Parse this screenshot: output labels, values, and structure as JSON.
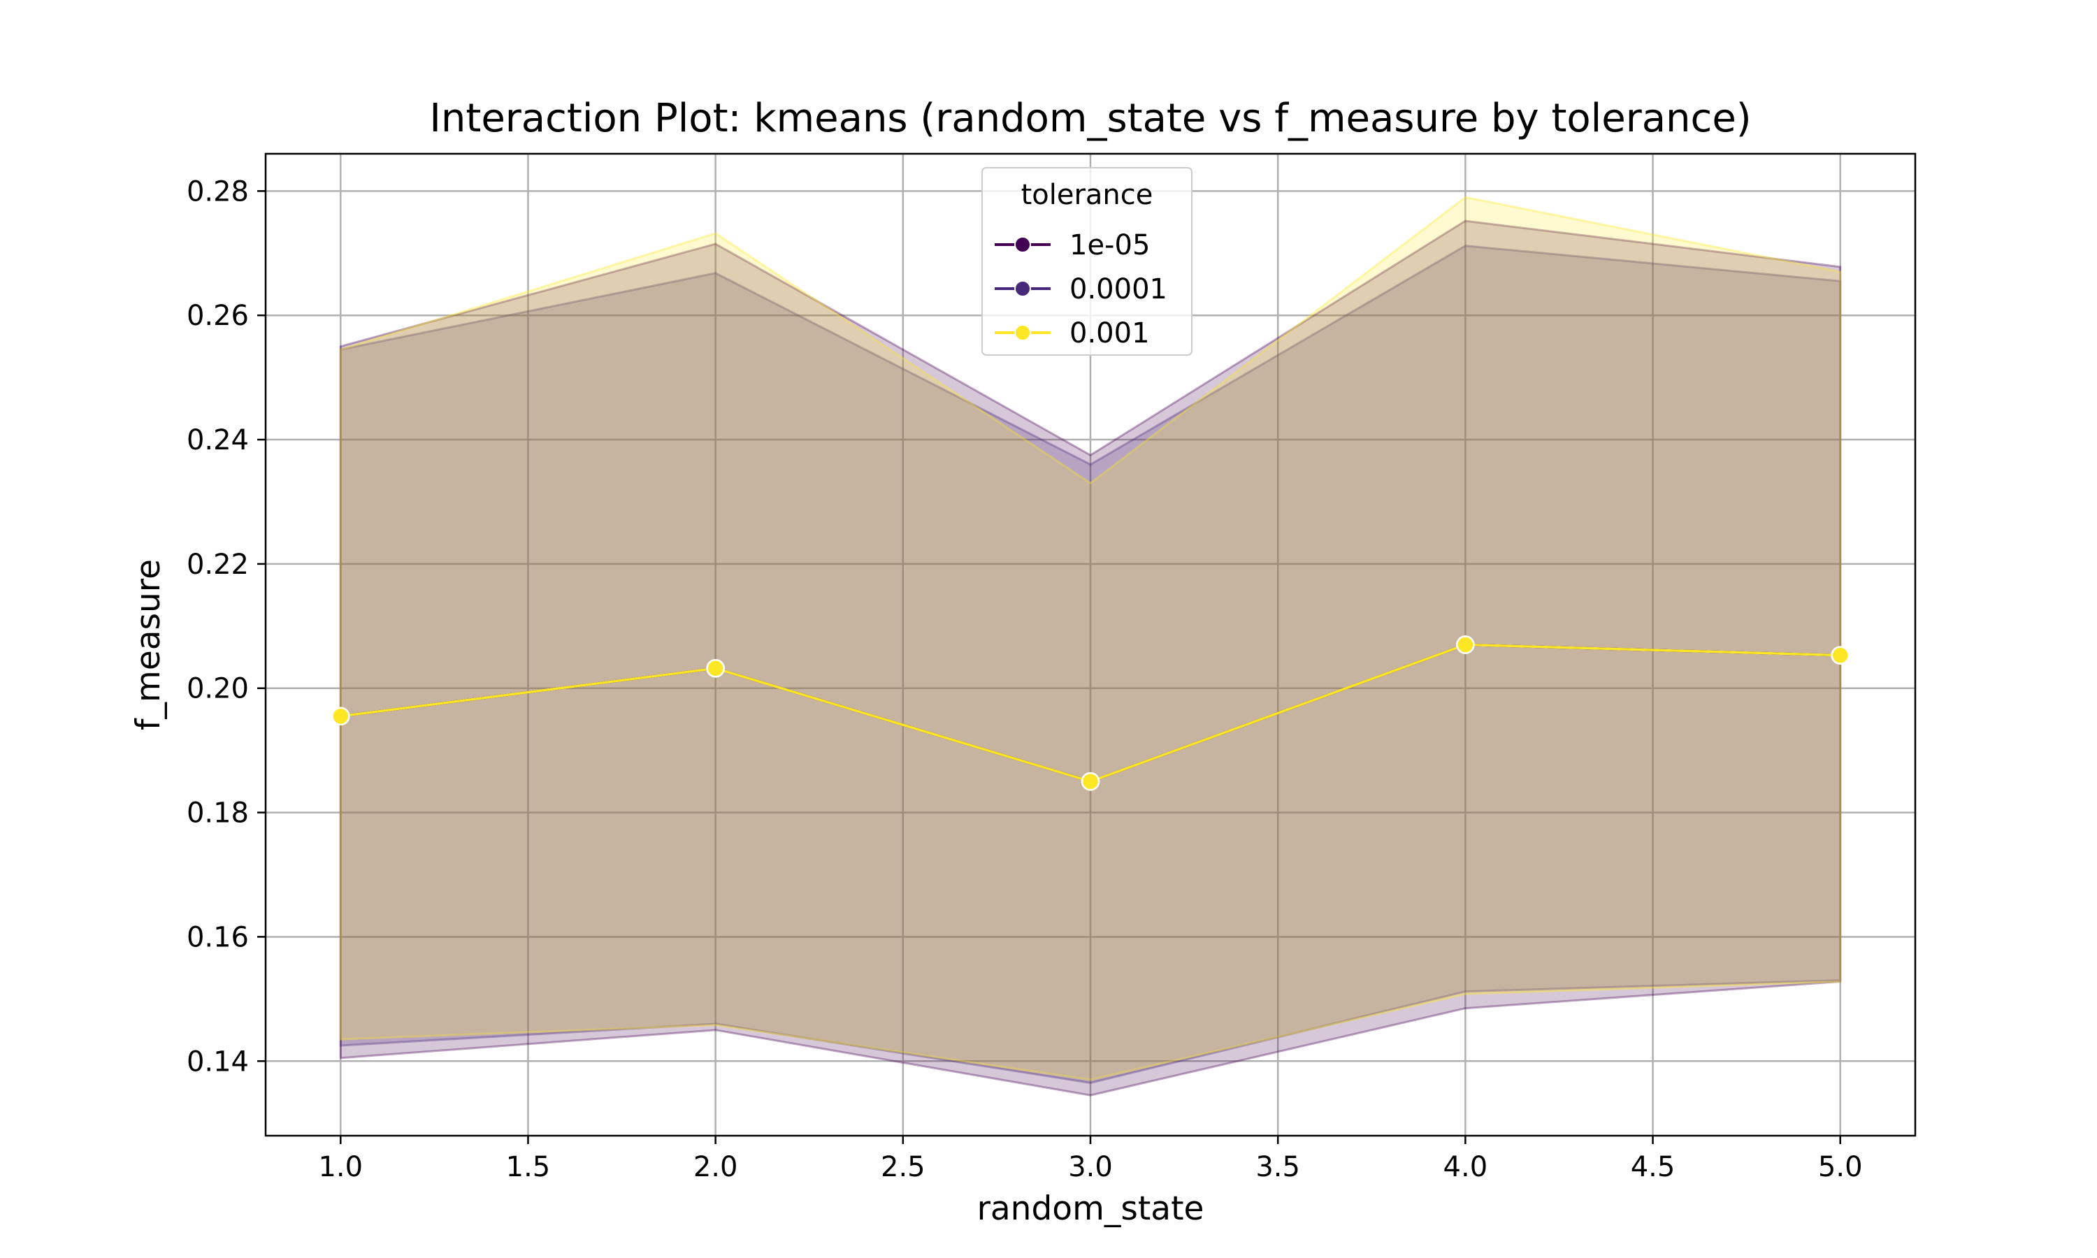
{
  "chart_data": {
    "type": "line",
    "title": "Interaction Plot: kmeans (random_state vs f_measure by tolerance)",
    "xlabel": "random_state",
    "ylabel": "f_measure",
    "xlim": [
      0.8,
      5.2
    ],
    "ylim": [
      0.128,
      0.286
    ],
    "xticks": [
      1.0,
      1.5,
      2.0,
      2.5,
      3.0,
      3.5,
      4.0,
      4.5,
      5.0
    ],
    "xtick_labels": [
      "1.0",
      "1.5",
      "2.0",
      "2.5",
      "3.0",
      "3.5",
      "4.0",
      "4.5",
      "5.0"
    ],
    "yticks": [
      0.14,
      0.16,
      0.18,
      0.2,
      0.22,
      0.24,
      0.26,
      0.28
    ],
    "ytick_labels": [
      "0.14",
      "0.16",
      "0.18",
      "0.20",
      "0.22",
      "0.24",
      "0.26",
      "0.28"
    ],
    "grid": true,
    "legend": {
      "title": "tolerance",
      "placement": "top-center"
    },
    "x": [
      1,
      2,
      3,
      4,
      5
    ],
    "series": [
      {
        "name": "1e-05",
        "color": "#440154",
        "values": [
          0.1955,
          0.2032,
          0.185,
          0.207,
          0.2053
        ],
        "ci_low": [
          0.1405,
          0.145,
          0.1345,
          0.1485,
          0.1528
        ],
        "ci_high": [
          0.255,
          0.2715,
          0.2375,
          0.2752,
          0.2678
        ]
      },
      {
        "name": "0.0001",
        "color": "#482878",
        "values": [
          0.1955,
          0.2032,
          0.185,
          0.207,
          0.2053
        ],
        "ci_low": [
          0.1425,
          0.146,
          0.1365,
          0.1512,
          0.153
        ],
        "ci_high": [
          0.2545,
          0.2668,
          0.236,
          0.2712,
          0.2655
        ]
      },
      {
        "name": "0.001",
        "color": "#fde725",
        "values": [
          0.1955,
          0.2032,
          0.185,
          0.207,
          0.2053
        ],
        "ci_low": [
          0.1435,
          0.1458,
          0.137,
          0.1508,
          0.1528
        ],
        "ci_high": [
          0.2545,
          0.2732,
          0.233,
          0.279,
          0.267
        ]
      }
    ]
  }
}
